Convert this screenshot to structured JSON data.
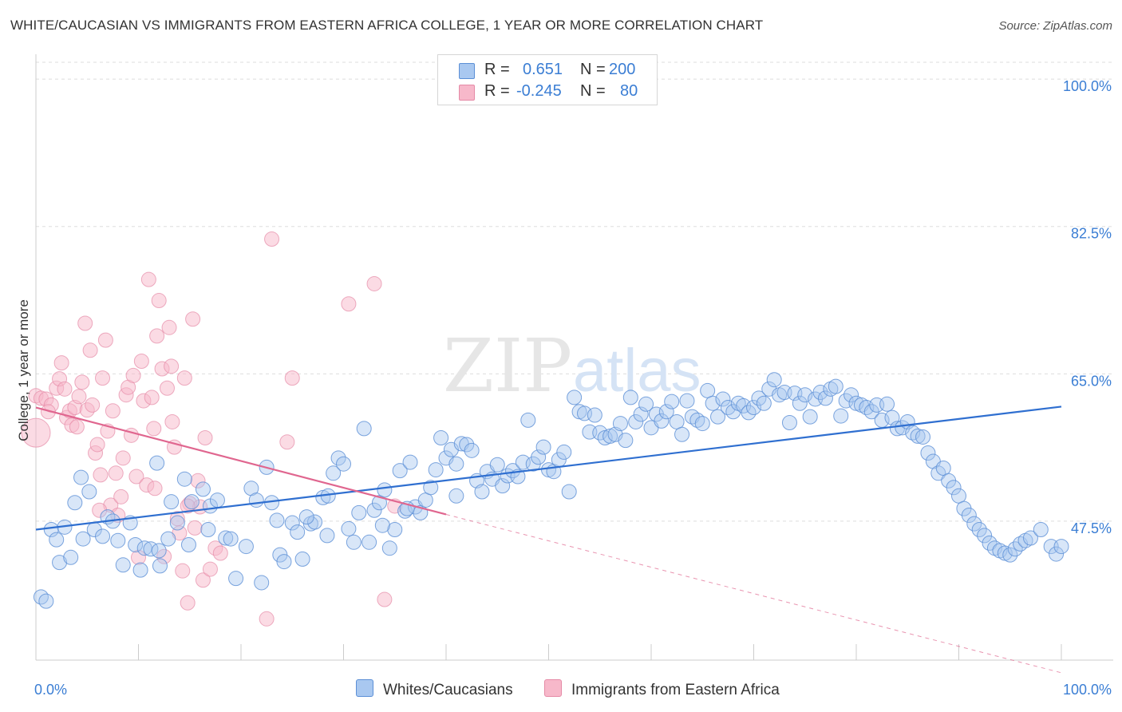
{
  "title": "WHITE/CAUCASIAN VS IMMIGRANTS FROM EASTERN AFRICA COLLEGE, 1 YEAR OR MORE CORRELATION CHART",
  "source": "Source: ZipAtlas.com",
  "watermark": "ZIPatlas",
  "legend_top": {
    "rows": [
      {
        "r_label": "R =",
        "r_value": "0.651",
        "n_label": "N =",
        "n_value": "200"
      },
      {
        "r_label": "R =",
        "r_value": "-0.245",
        "n_label": "N =",
        "n_value": "80"
      }
    ]
  },
  "legend_bottom": {
    "series1": "Whites/Caucasians",
    "series2": "Immigrants from Eastern Africa"
  },
  "colors": {
    "blue_fill": "#a9c8f0",
    "blue_stroke": "#5b8fd6",
    "blue_line": "#2f6fd0",
    "pink_fill": "#f7b8ca",
    "pink_stroke": "#e58aa6",
    "pink_line": "#e0668f",
    "grid": "#dddddd",
    "axis_text": "#3b7ed4"
  },
  "chart_data": {
    "type": "scatter",
    "title": "WHITE/CAUCASIAN VS IMMIGRANTS FROM EASTERN AFRICA COLLEGE, 1 YEAR OR MORE CORRELATION CHART",
    "xlabel": "",
    "ylabel": "College, 1 year or more",
    "xlim": [
      0,
      100
    ],
    "ylim": [
      31,
      102
    ],
    "x_tick_labels": [
      "0.0%",
      "100.0%"
    ],
    "y_ticks": [
      47.5,
      65.0,
      82.5,
      100.0
    ],
    "y_tick_labels": [
      "47.5%",
      "65.0%",
      "82.5%",
      "100.0%"
    ],
    "grid": true,
    "series": [
      {
        "name": "Whites/Caucasians",
        "r": 0.651,
        "n": 200,
        "trend": {
          "x": [
            0,
            100
          ],
          "y": [
            46.5,
            61.1
          ]
        },
        "points": [
          [
            0.5,
            38.5
          ],
          [
            1,
            38
          ],
          [
            1.5,
            46.5
          ],
          [
            2,
            45.3
          ],
          [
            2.3,
            42.6
          ],
          [
            2.8,
            46.8
          ],
          [
            3.4,
            43.2
          ],
          [
            3.8,
            49.7
          ],
          [
            4.4,
            52.7
          ],
          [
            4.6,
            45.4
          ],
          [
            5.2,
            51
          ],
          [
            5.7,
            46.5
          ],
          [
            6.5,
            45.7
          ],
          [
            7,
            48
          ],
          [
            7.5,
            47.5
          ],
          [
            8,
            45.2
          ],
          [
            8.5,
            42.3
          ],
          [
            9.2,
            47.3
          ],
          [
            9.7,
            44.7
          ],
          [
            10.2,
            41.7
          ],
          [
            10.6,
            44.3
          ],
          [
            11.2,
            44.2
          ],
          [
            11.8,
            54.4
          ],
          [
            12.1,
            42.2
          ],
          [
            12.9,
            45.4
          ],
          [
            13.2,
            49.8
          ],
          [
            13.8,
            47.3
          ],
          [
            14.5,
            52.5
          ],
          [
            14.9,
            44.7
          ],
          [
            15.2,
            49.8
          ],
          [
            16.3,
            51.3
          ],
          [
            16.8,
            46.5
          ],
          [
            17,
            49.3
          ],
          [
            17.7,
            50
          ],
          [
            18.5,
            45.5
          ],
          [
            19,
            45.4
          ],
          [
            19.5,
            40.7
          ],
          [
            20.5,
            44.5
          ],
          [
            21,
            51.4
          ],
          [
            21.5,
            50
          ],
          [
            22,
            40.2
          ],
          [
            22.5,
            53.9
          ],
          [
            23,
            49.7
          ],
          [
            23.5,
            47.6
          ],
          [
            23.8,
            43.5
          ],
          [
            24.2,
            42.7
          ],
          [
            25,
            47.3
          ],
          [
            25.5,
            46.2
          ],
          [
            26,
            43
          ],
          [
            26.8,
            47.2
          ],
          [
            27.2,
            47.4
          ],
          [
            28,
            50.3
          ],
          [
            28.5,
            50.5
          ],
          [
            29,
            53.2
          ],
          [
            29.5,
            55
          ],
          [
            30,
            54.3
          ],
          [
            30.5,
            46.6
          ],
          [
            31,
            45
          ],
          [
            31.5,
            48.5
          ],
          [
            32,
            58.5
          ],
          [
            32.5,
            45
          ],
          [
            33,
            48.8
          ],
          [
            33.5,
            49.7
          ],
          [
            34,
            51.2
          ],
          [
            34.5,
            44.3
          ],
          [
            35,
            46.5
          ],
          [
            35.5,
            53.5
          ],
          [
            36,
            48.7
          ],
          [
            36.5,
            54.5
          ],
          [
            37,
            49.2
          ],
          [
            37.5,
            48.5
          ],
          [
            38,
            50
          ],
          [
            38.5,
            51.5
          ],
          [
            39,
            53.6
          ],
          [
            39.5,
            57.4
          ],
          [
            40,
            55
          ],
          [
            40.5,
            56
          ],
          [
            41,
            54.3
          ],
          [
            41.5,
            56.7
          ],
          [
            42,
            56.6
          ],
          [
            42.5,
            55.9
          ],
          [
            43,
            52.3
          ],
          [
            43.5,
            51
          ],
          [
            44,
            53.4
          ],
          [
            44.5,
            52.5
          ],
          [
            45,
            54.2
          ],
          [
            45.5,
            51.7
          ],
          [
            46,
            52.9
          ],
          [
            46.5,
            53.5
          ],
          [
            47,
            52.8
          ],
          [
            47.5,
            54.5
          ],
          [
            48,
            59.5
          ],
          [
            48.5,
            54.3
          ],
          [
            49,
            55.1
          ],
          [
            49.5,
            56.3
          ],
          [
            50,
            53.6
          ],
          [
            50.5,
            53.4
          ],
          [
            51,
            54.8
          ],
          [
            51.5,
            55.7
          ],
          [
            52,
            51
          ],
          [
            52.5,
            62.2
          ],
          [
            53,
            60.5
          ],
          [
            53.5,
            60.3
          ],
          [
            54,
            58.1
          ],
          [
            54.5,
            60.1
          ],
          [
            55,
            58
          ],
          [
            55.5,
            57.4
          ],
          [
            56,
            57.6
          ],
          [
            56.5,
            57.8
          ],
          [
            57,
            59.1
          ],
          [
            57.5,
            57.1
          ],
          [
            58,
            62.2
          ],
          [
            58.5,
            59.3
          ],
          [
            59,
            60.2
          ],
          [
            59.5,
            61.4
          ],
          [
            60,
            58.6
          ],
          [
            60.5,
            60.2
          ],
          [
            61,
            59.4
          ],
          [
            61.5,
            60.5
          ],
          [
            62,
            61.7
          ],
          [
            62.5,
            59.3
          ],
          [
            63,
            57.8
          ],
          [
            63.5,
            61.8
          ],
          [
            64,
            59.9
          ],
          [
            64.5,
            59.5
          ],
          [
            65,
            59.1
          ],
          [
            65.5,
            63
          ],
          [
            66,
            61.5
          ],
          [
            66.5,
            59.9
          ],
          [
            67,
            62
          ],
          [
            67.5,
            61
          ],
          [
            68,
            60.5
          ],
          [
            68.5,
            61.5
          ],
          [
            69,
            61.2
          ],
          [
            69.5,
            60.4
          ],
          [
            70,
            61
          ],
          [
            70.5,
            62.1
          ],
          [
            71,
            61.5
          ],
          [
            71.5,
            63.2
          ],
          [
            72,
            64.3
          ],
          [
            72.5,
            62.5
          ],
          [
            73,
            62.8
          ],
          [
            73.5,
            59.2
          ],
          [
            74,
            62.7
          ],
          [
            74.5,
            61.5
          ],
          [
            75,
            62.5
          ],
          [
            75.5,
            59.9
          ],
          [
            76,
            62
          ],
          [
            76.5,
            62.8
          ],
          [
            77,
            62.1
          ],
          [
            77.5,
            63.2
          ],
          [
            78,
            63.5
          ],
          [
            78.5,
            60
          ],
          [
            79,
            61.8
          ],
          [
            79.5,
            62.5
          ],
          [
            80,
            61.5
          ],
          [
            80.5,
            61.3
          ],
          [
            81,
            61
          ],
          [
            81.5,
            60.5
          ],
          [
            82,
            61.3
          ],
          [
            82.5,
            59.5
          ],
          [
            83,
            61.4
          ],
          [
            83.5,
            59.8
          ],
          [
            84,
            58.5
          ],
          [
            84.5,
            58.6
          ],
          [
            85,
            59.3
          ],
          [
            85.5,
            58
          ],
          [
            86,
            57.6
          ],
          [
            86.5,
            57.5
          ],
          [
            87,
            55.6
          ],
          [
            87.5,
            54.6
          ],
          [
            88,
            53.2
          ],
          [
            88.5,
            53.8
          ],
          [
            89,
            52.3
          ],
          [
            89.5,
            51.5
          ],
          [
            90,
            50.5
          ],
          [
            90.5,
            49
          ],
          [
            91,
            48.2
          ],
          [
            91.5,
            47.2
          ],
          [
            92,
            46.5
          ],
          [
            92.5,
            45.8
          ],
          [
            93,
            44.9
          ],
          [
            93.5,
            44.3
          ],
          [
            94,
            44
          ],
          [
            94.5,
            43.7
          ],
          [
            95,
            43.5
          ],
          [
            95.5,
            44.2
          ],
          [
            96,
            44.8
          ],
          [
            96.5,
            45.2
          ],
          [
            97,
            45.5
          ],
          [
            98,
            46.5
          ],
          [
            99,
            44.5
          ],
          [
            99.5,
            43.6
          ],
          [
            100,
            44.5
          ],
          [
            12,
            44
          ],
          [
            28.4,
            45.8
          ],
          [
            41,
            50.5
          ],
          [
            36.2,
            49
          ],
          [
            33.8,
            47
          ],
          [
            26.4,
            48
          ]
        ]
      },
      {
        "name": "Immigrants from Eastern Africa",
        "r": -0.245,
        "n": 80,
        "trend": {
          "x": [
            0,
            40
          ],
          "y": [
            61.0,
            48.3
          ],
          "dashed_to": {
            "x": 100,
            "y": 29.5
          }
        },
        "points": [
          [
            0,
            58
          ],
          [
            0,
            62.4
          ],
          [
            0.5,
            62.1
          ],
          [
            1,
            62
          ],
          [
            1.5,
            61.3
          ],
          [
            2,
            63.3
          ],
          [
            2.3,
            64.4
          ],
          [
            2.5,
            66.3
          ],
          [
            2.8,
            63.2
          ],
          [
            3,
            59.8
          ],
          [
            3.3,
            60.6
          ],
          [
            3.5,
            58.9
          ],
          [
            3.8,
            61
          ],
          [
            4,
            58.7
          ],
          [
            4.2,
            62.3
          ],
          [
            4.5,
            64
          ],
          [
            4.8,
            71
          ],
          [
            5,
            60.7
          ],
          [
            5.3,
            67.8
          ],
          [
            5.5,
            61.3
          ],
          [
            5.8,
            55.6
          ],
          [
            6,
            56.6
          ],
          [
            6.3,
            53
          ],
          [
            6.5,
            64.5
          ],
          [
            6.8,
            69
          ],
          [
            7,
            58.2
          ],
          [
            7.3,
            49.4
          ],
          [
            7.5,
            60.6
          ],
          [
            7.8,
            53.2
          ],
          [
            8,
            48.2
          ],
          [
            8.3,
            50.4
          ],
          [
            8.5,
            55
          ],
          [
            8.8,
            62.5
          ],
          [
            9,
            63.4
          ],
          [
            9.3,
            57.7
          ],
          [
            9.5,
            64.8
          ],
          [
            9.8,
            52.8
          ],
          [
            10,
            43.2
          ],
          [
            10.3,
            66.5
          ],
          [
            10.5,
            61.8
          ],
          [
            10.8,
            51.8
          ],
          [
            11,
            76.2
          ],
          [
            11.3,
            62.2
          ],
          [
            11.5,
            58.5
          ],
          [
            11.8,
            69.5
          ],
          [
            12,
            73.7
          ],
          [
            12.3,
            65.6
          ],
          [
            12.5,
            43.3
          ],
          [
            12.8,
            63.3
          ],
          [
            13,
            70.5
          ],
          [
            13.3,
            59.3
          ],
          [
            13.5,
            56.3
          ],
          [
            13.8,
            47.8
          ],
          [
            14,
            46.1
          ],
          [
            14.3,
            41.6
          ],
          [
            14.5,
            64.5
          ],
          [
            14.8,
            37.8
          ],
          [
            15,
            49.6
          ],
          [
            15.3,
            71.5
          ],
          [
            15.5,
            46.7
          ],
          [
            15.8,
            52.3
          ],
          [
            16,
            49.2
          ],
          [
            16.3,
            40.5
          ],
          [
            16.5,
            57.4
          ],
          [
            17,
            41.8
          ],
          [
            17.5,
            44.3
          ],
          [
            18,
            43.7
          ],
          [
            22.5,
            35.9
          ],
          [
            23,
            81
          ],
          [
            24.5,
            56.9
          ],
          [
            25,
            64.5
          ],
          [
            30.5,
            73.3
          ],
          [
            33,
            75.7
          ],
          [
            34,
            38.2
          ],
          [
            35,
            49.3
          ],
          [
            13.2,
            65.9
          ],
          [
            14.8,
            49.3
          ],
          [
            1.2,
            60.5
          ],
          [
            6.2,
            48.8
          ],
          [
            11.6,
            51.4
          ]
        ]
      }
    ]
  }
}
